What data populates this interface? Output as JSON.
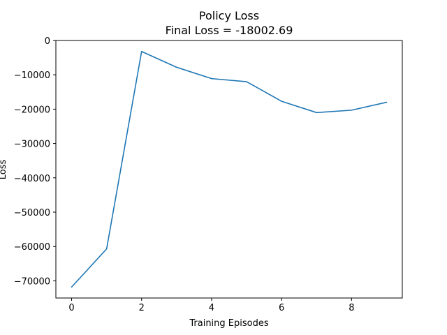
{
  "chart_data": {
    "type": "line",
    "title": "Policy Loss",
    "subtitle": "Final Loss = -18002.69",
    "xlabel": "Training Episodes",
    "ylabel": "Loss",
    "xlim": [
      -0.45,
      9.45
    ],
    "ylim": [
      -75000,
      0
    ],
    "xticks": [
      0,
      2,
      4,
      6,
      8
    ],
    "xtick_labels": [
      "0",
      "2",
      "4",
      "6",
      "8"
    ],
    "yticks": [
      0,
      -10000,
      -20000,
      -30000,
      -40000,
      -50000,
      -60000,
      -70000
    ],
    "ytick_labels": [
      "0",
      "−10000",
      "−20000",
      "−30000",
      "−40000",
      "−50000",
      "−60000",
      "−70000"
    ],
    "grid": false,
    "series": [
      {
        "color": "#1f77b4",
        "x": [
          0,
          1,
          2,
          3,
          4,
          5,
          6,
          7,
          8,
          9
        ],
        "y": [
          -71800,
          -60700,
          -3200,
          -7800,
          -11100,
          -12000,
          -17700,
          -21000,
          -20300,
          -18002.69
        ]
      }
    ]
  }
}
